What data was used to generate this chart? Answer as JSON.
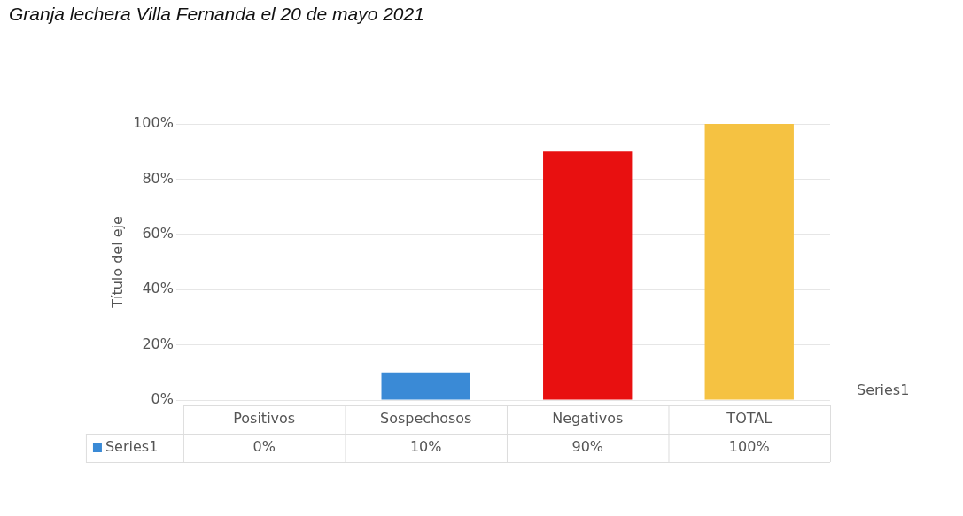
{
  "chart_data": {
    "type": "bar",
    "title": "Granja lechera Villa Fernanda el 20 de mayo 2021",
    "ylabel": "Título del eje",
    "categories": [
      "Positivos",
      "Sospechosos",
      "Negativos",
      "TOTAL"
    ],
    "series": [
      {
        "name": "Series1",
        "color": "#3a8ad6",
        "colors": [
          "#111111",
          "#3a8ad6",
          "#e81010",
          "#f5c242"
        ],
        "values": [
          0,
          10,
          90,
          100
        ],
        "value_labels": [
          "0%",
          "10%",
          "90%",
          "100%"
        ]
      }
    ],
    "ylim": [
      0,
      100
    ],
    "yticks": [
      {
        "value": 0,
        "label": "0%"
      },
      {
        "value": 20,
        "label": "20%"
      },
      {
        "value": 40,
        "label": "40%"
      },
      {
        "value": 60,
        "label": "60%"
      },
      {
        "value": 80,
        "label": "80%"
      },
      {
        "value": 100,
        "label": "100%"
      }
    ],
    "grid": "y"
  }
}
